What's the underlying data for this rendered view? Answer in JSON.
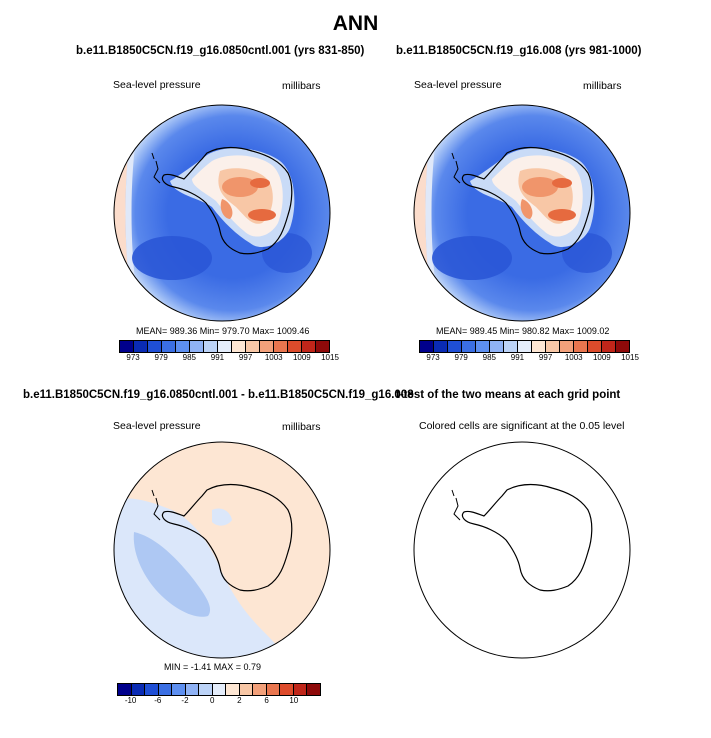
{
  "title": "ANN",
  "panels": {
    "p1": {
      "case_title": "b.e11.B1850C5CN.f19_g16.0850cntl.001 (yrs 831-850)",
      "variable": "Sea-level pressure",
      "units": "millibars",
      "stats": "MEAN= 989.36  Min= 979.70  Max= 1009.46"
    },
    "p2": {
      "case_title": "b.e11.B1850C5CN.f19_g16.008 (yrs 981-1000)",
      "variable": "Sea-level pressure",
      "units": "millibars",
      "stats": "MEAN= 989.45  Min= 980.82  Max= 1009.02"
    },
    "p3": {
      "case_title": "b.e11.B1850C5CN.f19_g16.0850cntl.001 - b.e11.B1850C5CN.f19_g16.008",
      "variable": "Sea-level pressure",
      "units": "millibars",
      "stats": "MIN =  -1.41 MAX =   0.79"
    },
    "p4": {
      "case_title": "t-test of the two means at each grid point",
      "note": "Colored cells are significant at the 0.05 level"
    }
  },
  "colorbars": {
    "slp": {
      "colors": [
        "#00008c",
        "#0a2bb4",
        "#1f4fd6",
        "#3b6fe3",
        "#5d8ff0",
        "#8fb2f5",
        "#bcd3f7",
        "#e4edfb",
        "#fde6d3",
        "#f8c7a6",
        "#f2a07a",
        "#e9764f",
        "#dd4b2b",
        "#c0261a",
        "#8e0a0a"
      ],
      "tick_labels": [
        "973",
        "979",
        "985",
        "991",
        "997",
        "1003",
        "1009",
        "1015"
      ]
    },
    "diff": {
      "colors": [
        "#00008c",
        "#0a2bb4",
        "#1f4fd6",
        "#3b6fe3",
        "#5d8ff0",
        "#8fb2f5",
        "#bcd3f7",
        "#e4edfb",
        "#fde6d3",
        "#f8c7a6",
        "#f2a07a",
        "#e9764f",
        "#dd4b2b",
        "#c0261a",
        "#8e0a0a"
      ],
      "tick_labels": [
        "-10",
        "-6",
        "-2",
        "0",
        "2",
        "6",
        "10"
      ]
    }
  },
  "map_colors": {
    "ocean_deep": "#2d5fe0",
    "ocean_mid": "#4a7ce8",
    "ocean_light": "#8fb2f5",
    "ring_pale": "#c9dbf7",
    "edge_warm": "#fbdccb",
    "land_white": "#fbf0ea",
    "land_warm1": "#f8c7a6",
    "land_warm2": "#f0956b",
    "land_hot": "#e66a3f",
    "diff_pos": "#fde6d3",
    "diff_neg1": "#dbe7fa",
    "diff_neg2": "#aec8f3",
    "coast": "#000000"
  }
}
